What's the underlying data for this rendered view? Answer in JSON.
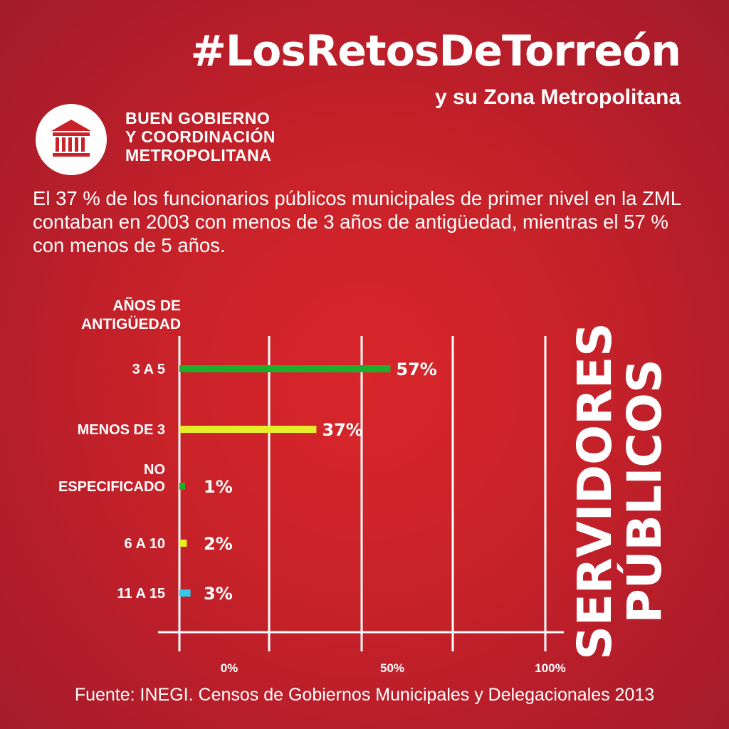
{
  "header": {
    "hashtag": "#LosRetosDeTorreón",
    "subtitle": "y su Zona Metropolitana"
  },
  "section": {
    "icon": "government-building-icon",
    "line1": "BUEN GOBIERNO",
    "line2": "Y COORDINACIÓN",
    "line3": "METROPOLITANA"
  },
  "intro_text": "El 37 % de los funcionarios públicos municipales de primer nivel en la ZML contaban en 2003 con menos de 3 años de antigüedad, mientras el 57 % con menos de 5 años.",
  "source": "Fuente: INEGI. Censos de Gobiernos Municipales y Delegacionales 2013",
  "colors": {
    "background": "#c92229",
    "green": "#1fae2a",
    "yellow": "#e6ee2a",
    "cyan": "#36c8e8",
    "text": "#ffffff"
  },
  "chart_data": {
    "type": "bar",
    "orientation": "horizontal",
    "ylabel_lines": [
      "AÑOS DE",
      "ANTIGÜEDAD"
    ],
    "title_lines": [
      "SERVIDORES",
      "PÚBLICOS"
    ],
    "categories": [
      "3 A 5",
      "MENOS DE 3",
      "NO ESPECIFICADO",
      "6 A 10",
      "11 A 15"
    ],
    "category_lines": [
      [
        "3 A 5"
      ],
      [
        "MENOS DE 3"
      ],
      [
        "NO",
        "ESPECIFICADO"
      ],
      [
        "6 A 10"
      ],
      [
        "11 A 15"
      ]
    ],
    "values": [
      57,
      37,
      1,
      2,
      3
    ],
    "value_labels": [
      "57%",
      "37%",
      "1%",
      "2%",
      "3%"
    ],
    "bar_colors": [
      "#1fae2a",
      "#e6ee2a",
      "#1fae2a",
      "#e6ee2a",
      "#36c8e8"
    ],
    "x_ticks": [
      "0%",
      "50%",
      "100%"
    ],
    "xlim": [
      0,
      100
    ],
    "grid": true
  }
}
